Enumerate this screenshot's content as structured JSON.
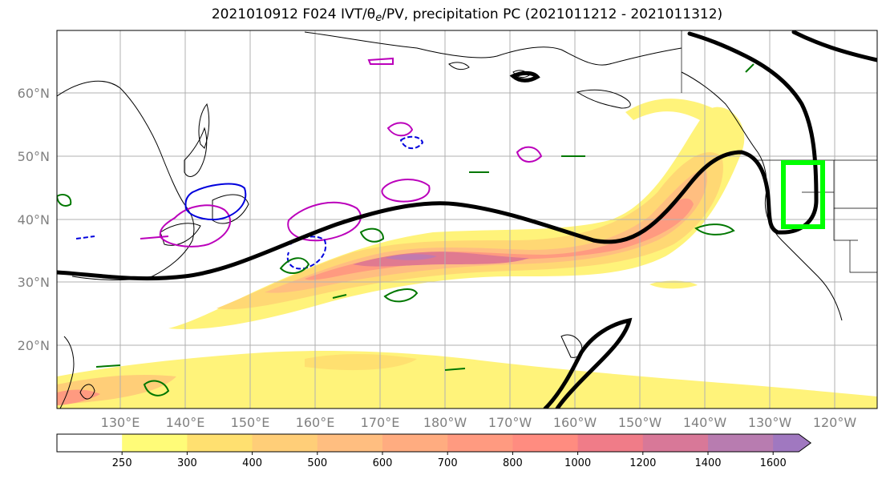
{
  "title": {
    "prefix": "2021010912 F024 IVT/",
    "theta": "θ",
    "theta_sub": "e",
    "suffix": "/PV, precipitation PC (2021011212 - 2021011312)"
  },
  "map": {
    "lat_labels": [
      "60°N",
      "50°N",
      "40°N",
      "30°N",
      "20°N"
    ],
    "lon_labels": [
      "130°E",
      "140°E",
      "150°E",
      "160°E",
      "170°E",
      "180°W",
      "170°W",
      "160°W",
      "150°W",
      "140°W",
      "130°W",
      "120°W"
    ],
    "highlight_box_color": "#00ff00",
    "contour_colors": {
      "thick_line": "#000000",
      "magenta": "#bb00bb",
      "green": "#007700",
      "blue": "#0000dd"
    }
  },
  "colorbar": {
    "ticks": [
      "250",
      "300",
      "400",
      "500",
      "600",
      "700",
      "800",
      "1000",
      "1200",
      "1400",
      "1600"
    ],
    "colors": [
      "#ffffff",
      "#fffc78",
      "#ffe070",
      "#ffce78",
      "#ffbe80",
      "#ffac80",
      "#ff9a80",
      "#ff8c80",
      "#f07c88",
      "#d87898",
      "#b87cb0",
      "#a078c0"
    ]
  }
}
